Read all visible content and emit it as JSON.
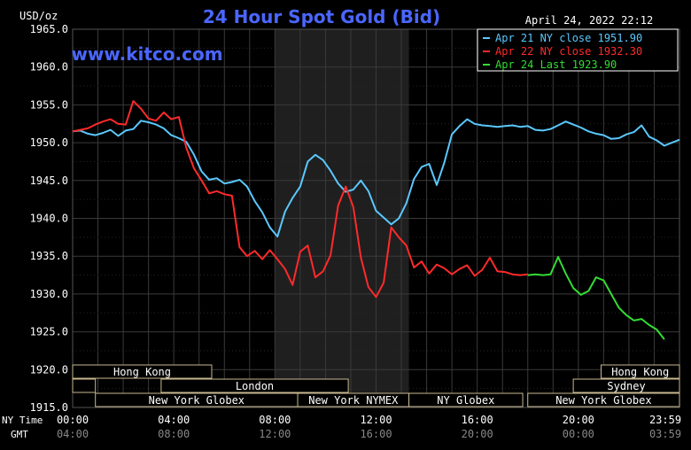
{
  "chart_data": {
    "type": "line",
    "title": "24 Hour Spot Gold (Bid)",
    "ylabel": "USD/oz",
    "date": "April 24, 2022 22:12",
    "watermark": "www.kitco.com",
    "ylim": [
      1915,
      1965
    ],
    "yticks": [
      "1965.0",
      "1960.0",
      "1955.0",
      "1950.0",
      "1945.0",
      "1940.0",
      "1935.0",
      "1930.0",
      "1925.0",
      "1920.0",
      "1915.0"
    ],
    "xlim": [
      0,
      24
    ],
    "x_labels_ny": [
      "00:00",
      "04:00",
      "08:00",
      "12:00",
      "16:00",
      "20:00",
      "23:59"
    ],
    "x_labels_gmt": [
      "04:00",
      "08:00",
      "12:00",
      "16:00",
      "20:00",
      "00:00",
      "03:59"
    ],
    "x_row_ny_title": "NY Time",
    "x_row_gmt_title": "GMT",
    "grid": true,
    "colors": {
      "background": "#000000",
      "grid": "#3a3a3a",
      "shade": "#1f1f1f",
      "title": "#4a66ff",
      "watermark": "#4a66ff",
      "axis_text": "#ffffff",
      "session_border": "#c8b890",
      "legend_border": "#ffffff"
    },
    "legend": [
      {
        "label": "Apr 21 NY close 1951.90",
        "color": "#5ac8ff"
      },
      {
        "label": "Apr 22 NY close 1932.30",
        "color": "#ff2a2a"
      },
      {
        "label": "Apr 24 Last 1923.90",
        "color": "#33dd33"
      }
    ],
    "shaded_range": [
      8,
      13.3
    ],
    "sessions": [
      {
        "label": "Hong Kong",
        "start": 0,
        "end": 5.5,
        "row": 0
      },
      {
        "label": "",
        "start": 0,
        "end": 0.9,
        "row": 1
      },
      {
        "label": "London",
        "start": 3.5,
        "end": 10.9,
        "row": 1
      },
      {
        "label": "New York Globex",
        "start": 0.9,
        "end": 8.9,
        "row": 2
      },
      {
        "label": "New York NYMEX",
        "start": 8.9,
        "end": 13.3,
        "row": 2
      },
      {
        "label": "NY Globex",
        "start": 13.3,
        "end": 17.8,
        "row": 2
      },
      {
        "label": "Hong Kong",
        "start": 20.9,
        "end": 24,
        "row": 0
      },
      {
        "label": "Sydney",
        "start": 19.8,
        "end": 24,
        "row": 1
      },
      {
        "label": "New York Globex",
        "start": 18.0,
        "end": 24,
        "row": 2
      }
    ],
    "series": [
      {
        "name": "Apr 21 NY close 1951.90",
        "color": "#5ac8ff",
        "x": [
          0,
          0.3,
          0.6,
          0.9,
          1.2,
          1.5,
          1.8,
          2.1,
          2.4,
          2.7,
          3.0,
          3.3,
          3.6,
          3.9,
          4.2,
          4.5,
          4.8,
          5.1,
          5.4,
          5.7,
          6.0,
          6.3,
          6.6,
          6.9,
          7.2,
          7.5,
          7.8,
          8.1,
          8.4,
          8.7,
          9.0,
          9.3,
          9.6,
          9.9,
          10.2,
          10.5,
          10.8,
          11.1,
          11.4,
          11.7,
          12.0,
          12.3,
          12.6,
          12.9,
          13.2,
          13.5,
          13.8,
          14.1,
          14.4,
          14.7,
          15.0,
          15.3,
          15.6,
          15.9,
          16.2,
          16.5,
          16.8,
          17.1,
          17.4,
          17.7,
          18.0,
          18.3,
          18.6,
          18.9,
          19.2,
          19.5,
          19.8,
          20.1,
          20.4,
          20.7,
          21.0,
          21.3,
          21.6,
          21.9,
          22.2,
          22.5,
          22.8,
          23.1,
          23.4,
          23.7,
          24.0
        ],
        "y": [
          1951.5,
          1951.6,
          1951.2,
          1951.0,
          1951.3,
          1951.7,
          1950.9,
          1951.6,
          1951.8,
          1952.9,
          1952.7,
          1952.4,
          1951.9,
          1951.0,
          1950.6,
          1950.1,
          1948.4,
          1946.2,
          1945.1,
          1945.3,
          1944.6,
          1944.8,
          1945.1,
          1944.2,
          1942.3,
          1940.8,
          1938.8,
          1937.6,
          1940.9,
          1942.7,
          1944.2,
          1947.5,
          1948.4,
          1947.7,
          1946.3,
          1944.6,
          1943.5,
          1943.8,
          1945.0,
          1943.6,
          1941.0,
          1940.1,
          1939.2,
          1940.0,
          1942.0,
          1945.2,
          1946.8,
          1947.2,
          1944.4,
          1947.4,
          1951.1,
          1952.2,
          1953.1,
          1952.5,
          1952.3,
          1952.2,
          1952.1,
          1952.2,
          1952.3,
          1952.1,
          1952.2,
          1951.7,
          1951.6,
          1951.8,
          1952.3,
          1952.8,
          1952.4,
          1952.0,
          1951.5,
          1951.2,
          1951.0,
          1950.5,
          1950.6,
          1951.1,
          1951.4,
          1952.3,
          1950.8,
          1950.3,
          1949.6,
          1950.0,
          1950.4
        ]
      },
      {
        "name": "Apr 22 NY close 1932.30",
        "color": "#ff2a2a",
        "x": [
          0,
          0.3,
          0.6,
          0.9,
          1.2,
          1.5,
          1.8,
          2.1,
          2.4,
          2.7,
          3.0,
          3.3,
          3.6,
          3.9,
          4.2,
          4.5,
          4.8,
          5.1,
          5.4,
          5.7,
          6.0,
          6.3,
          6.6,
          6.9,
          7.2,
          7.5,
          7.8,
          8.1,
          8.4,
          8.7,
          9.0,
          9.3,
          9.6,
          9.9,
          10.2,
          10.5,
          10.8,
          11.1,
          11.4,
          11.7,
          12.0,
          12.3,
          12.6,
          12.9,
          13.2,
          13.5,
          13.8,
          14.1,
          14.4,
          14.7,
          15.0,
          15.3,
          15.6,
          15.9,
          16.2,
          16.5,
          16.8,
          17.1,
          17.4,
          17.7,
          18.0
        ],
        "y": [
          1951.5,
          1951.7,
          1951.9,
          1952.4,
          1952.8,
          1953.1,
          1952.5,
          1952.4,
          1955.5,
          1954.5,
          1953.2,
          1952.9,
          1954.0,
          1953.1,
          1953.4,
          1949.3,
          1946.6,
          1945.0,
          1943.3,
          1943.6,
          1943.2,
          1943.0,
          1936.2,
          1935.0,
          1935.7,
          1934.6,
          1935.8,
          1934.6,
          1933.3,
          1931.2,
          1935.6,
          1936.4,
          1932.2,
          1933.0,
          1935.1,
          1941.7,
          1944.2,
          1941.5,
          1934.8,
          1930.9,
          1929.6,
          1931.5,
          1938.8,
          1937.5,
          1936.4,
          1933.5,
          1934.3,
          1932.7,
          1933.9,
          1933.4,
          1932.6,
          1933.3,
          1933.8,
          1932.4,
          1933.2,
          1934.8,
          1933.0,
          1932.9,
          1932.6,
          1932.5,
          1932.6
        ]
      },
      {
        "name": "Apr 24 Last 1923.90",
        "color": "#33dd33",
        "x": [
          18.0,
          18.3,
          18.6,
          18.9,
          19.2,
          19.5,
          19.8,
          20.1,
          20.4,
          20.7,
          21.0,
          21.3,
          21.6,
          21.9,
          22.2,
          22.5,
          22.8,
          23.1,
          23.4
        ],
        "y": [
          1932.5,
          1932.6,
          1932.5,
          1932.6,
          1934.9,
          1932.7,
          1930.8,
          1929.9,
          1930.4,
          1932.2,
          1931.8,
          1930.0,
          1928.2,
          1927.2,
          1926.5,
          1926.7,
          1925.9,
          1925.3,
          1924.0
        ]
      }
    ]
  }
}
